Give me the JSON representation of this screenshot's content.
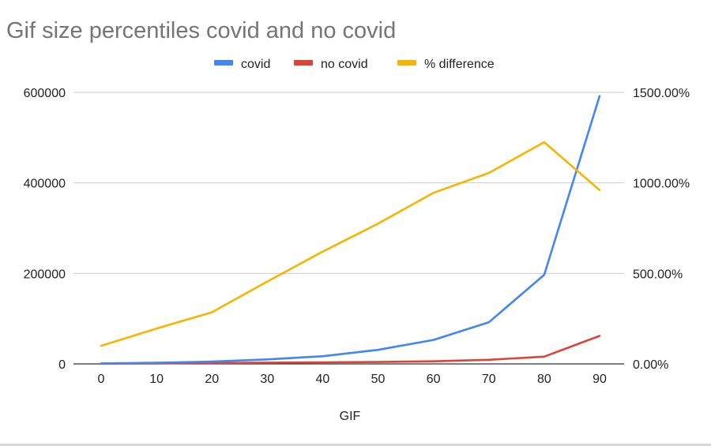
{
  "chart_data": {
    "type": "line",
    "title": "Gif size percentiles covid and no covid",
    "xlabel": "GIF",
    "ylabel": "",
    "x": [
      0,
      10,
      20,
      30,
      40,
      50,
      60,
      70,
      80,
      90
    ],
    "x_tick_labels": [
      "0",
      "10",
      "20",
      "30",
      "40",
      "50",
      "60",
      "70",
      "80",
      "90"
    ],
    "ylim": [
      0,
      600000
    ],
    "y_ticks": [
      0,
      200000,
      400000,
      600000
    ],
    "y_tick_labels": [
      "0",
      "200000",
      "400000",
      "600000"
    ],
    "y2lim": [
      0,
      1500
    ],
    "y2_ticks": [
      0,
      500,
      1000,
      1500
    ],
    "y2_tick_labels": [
      "0.00%",
      "500.00%",
      "1000.00%",
      "1500.00%"
    ],
    "legend_position": "top",
    "grid": true,
    "series": [
      {
        "name": "covid",
        "axis": "left",
        "color": "#4285f4",
        "values": [
          1000,
          2500,
          5000,
          10000,
          17000,
          31000,
          53000,
          92000,
          197000,
          592000
        ]
      },
      {
        "name": "no covid",
        "axis": "left",
        "color": "#db4437",
        "values": [
          500,
          1200,
          2000,
          2800,
          3500,
          4200,
          5800,
          9000,
          16000,
          62000
        ]
      },
      {
        "name": "% difference",
        "axis": "right",
        "color": "#f4b400",
        "values": [
          100,
          195,
          285,
          455,
          620,
          775,
          945,
          1055,
          1225,
          960
        ]
      }
    ]
  }
}
